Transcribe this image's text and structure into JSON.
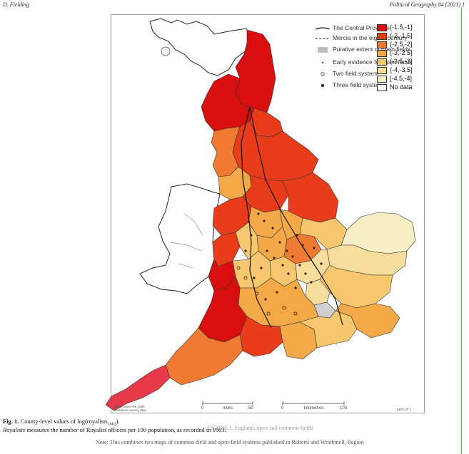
{
  "header": {
    "author": "D. Fielding",
    "journal": "Political Geography 84 (2021) 1"
  },
  "legend_overlay": {
    "items": [
      {
        "label": "The Central Province",
        "symbol": "solid-line"
      },
      {
        "label": "Mercia in the eighth century",
        "symbol": "dashed-line"
      },
      {
        "label": "Putative extent of open fields",
        "symbol": "grey-box"
      },
      {
        "label": "Early evidence for open fields",
        "symbol": "small-dot"
      },
      {
        "label": "Two field system",
        "symbol": "open-circle"
      },
      {
        "label": "Three field system",
        "symbol": "filled-dot"
      }
    ]
  },
  "choropleth_legend": {
    "bins": [
      {
        "label": "(-1.5,-1]",
        "color": "#d90f0f"
      },
      {
        "label": "(-2,-1.5]",
        "color": "#e83c1a"
      },
      {
        "label": "(-2.5,-2]",
        "color": "#f07a32"
      },
      {
        "label": "(-3,-2.5]",
        "color": "#f4a948"
      },
      {
        "label": "(-3.5,-3]",
        "color": "#f7c76f"
      },
      {
        "label": "(-4,-3.5]",
        "color": "#f6dd9d"
      },
      {
        "label": "[-4.5,-4]",
        "color": "#f8eec6"
      },
      {
        "label": "No data",
        "color": "#ffffff"
      }
    ]
  },
  "scales": {
    "miles_label": "miles",
    "miles_ticks": [
      "0",
      "50"
    ],
    "km_label": "kilometres",
    "km_ticks": [
      "0",
      "100"
    ]
  },
  "map_note": {
    "base": "Based upon the 1926 Ordnance Survey Map",
    "code": "KB/CUP 1",
    "footer_figure": "FIGURE 1. England, open and common fields"
  },
  "caption": {
    "title_prefix": "Fig. 1.",
    "title_text": "County-level values of log(royalists",
    "title_sub": "1662",
    "title_end": ").",
    "line2_lead": "Royalists",
    "line2_rest": "measures the number of Royalist officers per 100 population, as recorded in 1663."
  },
  "note_line": "Note: This combines two maps of common-field and open-field systems published in Roberts and Wrathmell, Region"
}
